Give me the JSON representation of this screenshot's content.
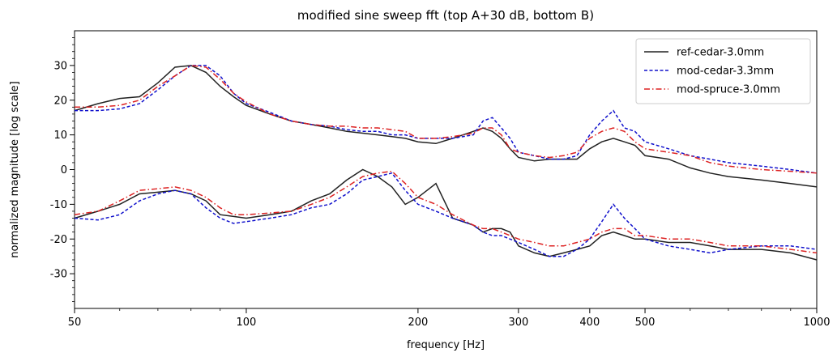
{
  "chart_data": {
    "type": "line",
    "title": "modified sine sweep fft (top A+30 dB, bottom B)",
    "xlabel": "frequency [Hz]",
    "ylabel": "normalized magnitude [log scale]",
    "xscale": "log",
    "xlim": [
      50,
      1000
    ],
    "ylim": [
      -40,
      40
    ],
    "xticks": [
      50,
      100,
      200,
      300,
      400,
      500,
      1000
    ],
    "xtick_labels": [
      "50",
      "100",
      "200",
      "300",
      "400",
      "500",
      "1000"
    ],
    "yticks": [
      -30,
      -20,
      -10,
      0,
      10,
      20,
      30
    ],
    "ytick_labels": [
      "-30",
      "-20",
      "-10",
      "0",
      "10",
      "20",
      "30"
    ],
    "grid": false,
    "legend_position": "top-right",
    "series": [
      {
        "name": "ref-cedar-3.0mm",
        "color": "#222222",
        "dash": "",
        "groups": [
          {
            "x": [
              50,
              55,
              60,
              65,
              70,
              75,
              80,
              85,
              90,
              95,
              100,
              110,
              120,
              130,
              140,
              150,
              160,
              170,
              180,
              190,
              200,
              215,
              230,
              250,
              260,
              270,
              280,
              290,
              300,
              320,
              340,
              360,
              380,
              400,
              420,
              440,
              460,
              480,
              500,
              550,
              600,
              650,
              700,
              800,
              900,
              1000
            ],
            "y": [
              17,
              19,
              20.5,
              21,
              25,
              29.5,
              30,
              28,
              24,
              21,
              18.5,
              16,
              14,
              13,
              12,
              11,
              10.5,
              10,
              9.5,
              9,
              8,
              7.5,
              9,
              11,
              12,
              11,
              9,
              6,
              3.5,
              2.5,
              3,
              3,
              3,
              6,
              8,
              9,
              8,
              7,
              4,
              3,
              0.5,
              -1,
              -2,
              -3,
              -4,
              -5
            ]
          },
          {
            "x": [
              50,
              55,
              60,
              65,
              70,
              75,
              80,
              85,
              90,
              95,
              100,
              110,
              120,
              130,
              140,
              150,
              160,
              170,
              180,
              190,
              200,
              215,
              230,
              250,
              260,
              270,
              280,
              290,
              300,
              320,
              340,
              360,
              380,
              400,
              420,
              440,
              460,
              480,
              500,
              550,
              600,
              650,
              700,
              800,
              900,
              1000
            ],
            "y": [
              -14,
              -12,
              -10,
              -7,
              -6.5,
              -6,
              -7,
              -9,
              -13,
              -13.5,
              -14,
              -13,
              -12,
              -9,
              -7,
              -3,
              0,
              -2,
              -5,
              -10,
              -8,
              -4,
              -14,
              -16,
              -18,
              -17,
              -17,
              -18,
              -22,
              -24,
              -25,
              -24,
              -23,
              -22,
              -19,
              -18,
              -19,
              -20,
              -20,
              -21,
              -21,
              -22,
              -23,
              -23,
              -24,
              -26
            ]
          }
        ]
      },
      {
        "name": "mod-cedar-3.3mm",
        "color": "#1111cc",
        "dash": "4,2.5",
        "groups": [
          {
            "x": [
              50,
              55,
              60,
              65,
              70,
              75,
              80,
              85,
              90,
              95,
              100,
              110,
              120,
              130,
              140,
              150,
              160,
              170,
              180,
              190,
              200,
              215,
              230,
              250,
              260,
              270,
              280,
              290,
              300,
              320,
              340,
              360,
              380,
              400,
              420,
              440,
              460,
              480,
              500,
              550,
              600,
              650,
              700,
              800,
              900,
              1000
            ],
            "y": [
              17,
              17,
              17.5,
              19,
              23,
              27,
              30,
              30,
              27,
              22,
              19,
              16.5,
              14,
              13,
              12.5,
              11.5,
              11,
              11,
              10,
              10,
              9,
              9,
              9,
              10,
              14,
              15,
              12,
              9,
              5,
              4,
              3,
              3,
              4,
              10,
              14,
              17,
              12,
              11,
              8,
              6,
              4,
              3,
              2,
              1,
              0,
              -1
            ]
          },
          {
            "x": [
              50,
              55,
              60,
              65,
              70,
              75,
              80,
              85,
              90,
              95,
              100,
              110,
              120,
              130,
              140,
              150,
              160,
              170,
              180,
              190,
              200,
              215,
              230,
              250,
              260,
              270,
              280,
              290,
              300,
              320,
              340,
              360,
              380,
              400,
              420,
              440,
              460,
              480,
              500,
              550,
              600,
              650,
              700,
              800,
              900,
              1000
            ],
            "y": [
              -14,
              -14.5,
              -13,
              -9,
              -7,
              -6,
              -7,
              -11,
              -14,
              -15.5,
              -15,
              -14,
              -13,
              -11,
              -10,
              -7,
              -3,
              -2,
              -1,
              -6,
              -10,
              -12,
              -14,
              -16,
              -18,
              -19,
              -19,
              -20,
              -21,
              -23,
              -25,
              -25,
              -23,
              -20,
              -15,
              -10,
              -14,
              -17,
              -20,
              -22,
              -23,
              -24,
              -23,
              -22,
              -22,
              -23
            ]
          }
        ]
      },
      {
        "name": "mod-spruce-3.0mm",
        "color": "#dd2222",
        "dash": "7,3,1.5,3",
        "groups": [
          {
            "x": [
              50,
              55,
              60,
              65,
              70,
              75,
              80,
              85,
              90,
              95,
              100,
              110,
              120,
              130,
              140,
              150,
              160,
              170,
              180,
              190,
              200,
              215,
              230,
              250,
              260,
              270,
              280,
              290,
              300,
              320,
              340,
              360,
              380,
              400,
              420,
              440,
              460,
              480,
              500,
              550,
              600,
              650,
              700,
              800,
              900,
              1000
            ],
            "y": [
              18,
              18,
              18.5,
              20,
              24,
              27,
              30,
              29.5,
              26,
              22,
              19.5,
              16,
              14,
              13,
              12.5,
              12.5,
              12,
              12,
              11.5,
              11,
              9,
              9,
              9.5,
              10.5,
              12,
              12,
              10,
              6,
              5,
              4,
              3.5,
              4,
              5,
              9,
              11,
              12,
              11,
              8,
              6,
              5,
              4,
              2,
              1,
              0,
              -0.5,
              -1
            ]
          },
          {
            "x": [
              50,
              55,
              60,
              65,
              70,
              75,
              80,
              85,
              90,
              95,
              100,
              110,
              120,
              130,
              140,
              150,
              160,
              170,
              180,
              190,
              200,
              215,
              230,
              250,
              260,
              270,
              280,
              290,
              300,
              320,
              340,
              360,
              380,
              400,
              420,
              440,
              460,
              480,
              500,
              550,
              600,
              650,
              700,
              800,
              900,
              1000
            ],
            "y": [
              -13,
              -12,
              -9,
              -6,
              -5.5,
              -5,
              -6,
              -8,
              -11,
              -13,
              -13,
              -12.5,
              -12,
              -10,
              -8,
              -5,
              -2,
              -1,
              -0.5,
              -4,
              -8,
              -10,
              -13,
              -16,
              -17,
              -17,
              -18,
              -19,
              -20,
              -21,
              -22,
              -22,
              -21,
              -20,
              -18,
              -17,
              -17,
              -19,
              -19,
              -20,
              -20,
              -21,
              -22,
              -22,
              -23,
              -24
            ]
          }
        ]
      }
    ]
  }
}
